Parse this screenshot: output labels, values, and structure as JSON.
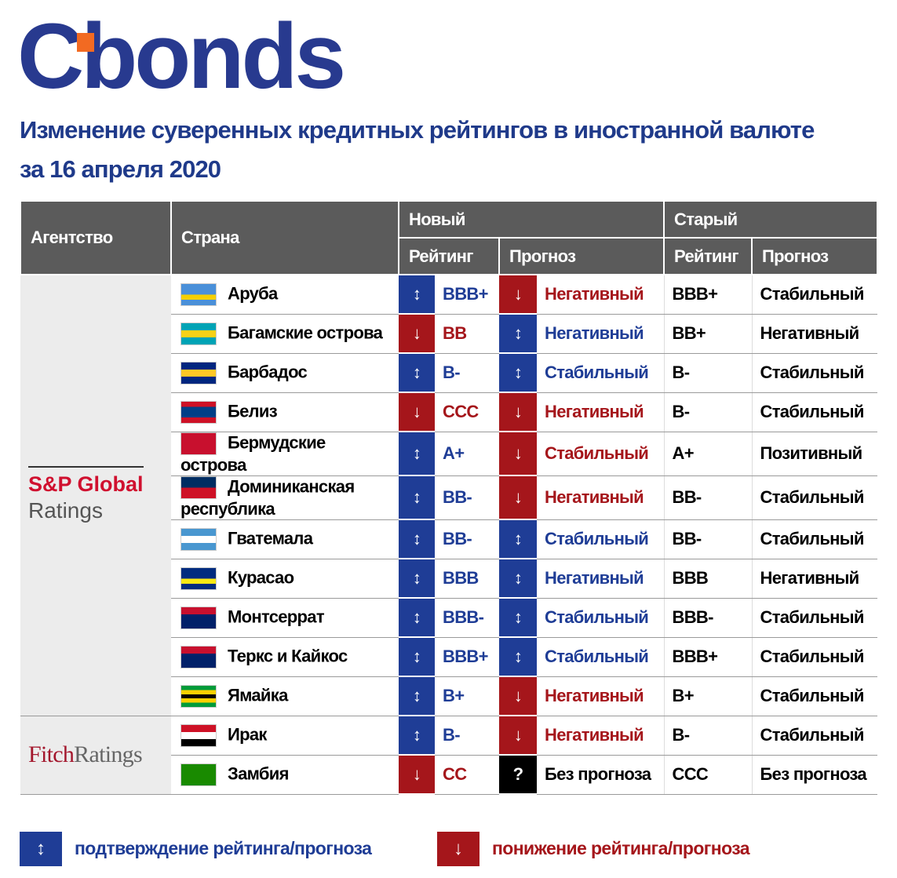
{
  "logo": "Cbonds",
  "title_lines": [
    "Изменение суверенных кредитных рейтингов в иностранной валюте",
    "за 16 апреля 2020"
  ],
  "table": {
    "header": {
      "agency": "Агентство",
      "country": "Страна",
      "new": "Новый",
      "old": "Старый",
      "rating": "Рейтинг",
      "outlook": "Прогноз"
    },
    "groups": [
      {
        "agency": [
          "S&P Global",
          "Ratings"
        ],
        "agency_colors": [
          "#d0102f",
          "#555555"
        ],
        "rows": [
          {
            "country": "Аруба",
            "flag": [
              "#4a90d9",
              "#4a90d9",
              "#f5d000",
              "#4a90d9"
            ],
            "new_rating_arrow": "↕",
            "new_rating": "BBB+",
            "new_rating_color": "#1f3d96",
            "new_outlook_arrow": "↓",
            "new_outlook": "Негативный",
            "new_outlook_color": "#a5161b",
            "old_rating": "BBB+",
            "old_outlook": "Стабильный"
          },
          {
            "country": "Багамские острова",
            "flag": [
              "#00a3b5",
              "#f7d117",
              "#00a3b5"
            ],
            "new_rating_arrow": "↓",
            "new_rating": "BB",
            "new_rating_color": "#a5161b",
            "new_outlook_arrow": "↕",
            "new_outlook": "Негативный",
            "new_outlook_color": "#1f3d96",
            "old_rating": "BB+",
            "old_outlook": "Негативный"
          },
          {
            "country": "Барбадос",
            "flag": [
              "#00267f",
              "#ffc726",
              "#00267f"
            ],
            "new_rating_arrow": "↕",
            "new_rating": "B-",
            "new_rating_color": "#1f3d96",
            "new_outlook_arrow": "↕",
            "new_outlook": "Стабильный",
            "new_outlook_color": "#1f3d96",
            "old_rating": "B-",
            "old_outlook": "Стабильный"
          },
          {
            "country": "Белиз",
            "flag": [
              "#ce1126",
              "#003f87",
              "#003f87",
              "#ce1126"
            ],
            "new_rating_arrow": "↓",
            "new_rating": "CCC",
            "new_rating_color": "#a5161b",
            "new_outlook_arrow": "↓",
            "new_outlook": "Негативный",
            "new_outlook_color": "#a5161b",
            "old_rating": "B-",
            "old_outlook": "Стабильный"
          },
          {
            "country": "Бермудские острова",
            "flag": [
              "#c8102e"
            ],
            "new_rating_arrow": "↕",
            "new_rating": "A+",
            "new_rating_color": "#1f3d96",
            "new_outlook_arrow": "↓",
            "new_outlook": "Стабильный",
            "new_outlook_color": "#a5161b",
            "old_rating": "A+",
            "old_outlook": "Позитивный"
          },
          {
            "country": "Доминиканская республика",
            "flag": [
              "#002d62",
              "#ce1126"
            ],
            "new_rating_arrow": "↕",
            "new_rating": "BB-",
            "new_rating_color": "#1f3d96",
            "new_outlook_arrow": "↓",
            "new_outlook": "Негативный",
            "new_outlook_color": "#a5161b",
            "old_rating": "BB-",
            "old_outlook": "Стабильный"
          },
          {
            "country": "Гватемала",
            "flag": [
              "#4997d0",
              "#ffffff",
              "#4997d0"
            ],
            "new_rating_arrow": "↕",
            "new_rating": "BB-",
            "new_rating_color": "#1f3d96",
            "new_outlook_arrow": "↕",
            "new_outlook": "Стабильный",
            "new_outlook_color": "#1f3d96",
            "old_rating": "BB-",
            "old_outlook": "Стабильный"
          },
          {
            "country": "Курасао",
            "flag": [
              "#002b7f",
              "#002b7f",
              "#f9e814",
              "#002b7f"
            ],
            "new_rating_arrow": "↕",
            "new_rating": "BBB",
            "new_rating_color": "#1f3d96",
            "new_outlook_arrow": "↕",
            "new_outlook": "Негативный",
            "new_outlook_color": "#1f3d96",
            "old_rating": "BBB",
            "old_outlook": "Негативный"
          },
          {
            "country": "Монтсеррат",
            "flag": [
              "#c8102e",
              "#012169",
              "#012169"
            ],
            "new_rating_arrow": "↕",
            "new_rating": "BBB-",
            "new_rating_color": "#1f3d96",
            "new_outlook_arrow": "↕",
            "new_outlook": "Стабильный",
            "new_outlook_color": "#1f3d96",
            "old_rating": "BBB-",
            "old_outlook": "Стабильный"
          },
          {
            "country": "Теркс и Кайкос",
            "flag": [
              "#c8102e",
              "#012169",
              "#012169"
            ],
            "new_rating_arrow": "↕",
            "new_rating": "BBB+",
            "new_rating_color": "#1f3d96",
            "new_outlook_arrow": "↕",
            "new_outlook": "Стабильный",
            "new_outlook_color": "#1f3d96",
            "old_rating": "BBB+",
            "old_outlook": "Стабильный"
          },
          {
            "country": "Ямайка",
            "flag": [
              "#009b3a",
              "#fed100",
              "#000000",
              "#fed100",
              "#009b3a"
            ],
            "new_rating_arrow": "↕",
            "new_rating": "B+",
            "new_rating_color": "#1f3d96",
            "new_outlook_arrow": "↓",
            "new_outlook": "Негативный",
            "new_outlook_color": "#a5161b",
            "old_rating": "B+",
            "old_outlook": "Стабильный"
          }
        ]
      },
      {
        "agency": [
          "Fitch",
          "Ratings"
        ],
        "agency_colors": [
          "#a3162c",
          "#666666"
        ],
        "rows": [
          {
            "country": "Ирак",
            "flag": [
              "#ce1126",
              "#ffffff",
              "#000000"
            ],
            "new_rating_arrow": "↕",
            "new_rating": "B-",
            "new_rating_color": "#1f3d96",
            "new_outlook_arrow": "↓",
            "new_outlook": "Негативный",
            "new_outlook_color": "#a5161b",
            "old_rating": "B-",
            "old_outlook": "Стабильный"
          },
          {
            "country": "Замбия",
            "flag": [
              "#198a00"
            ],
            "new_rating_arrow": "↓",
            "new_rating": "CC",
            "new_rating_color": "#a5161b",
            "new_outlook_arrow": "?",
            "new_outlook": "Без прогноза",
            "new_outlook_color": "#000000",
            "old_rating": "CCC",
            "old_outlook": "Без прогноза"
          }
        ]
      }
    ]
  },
  "legend": [
    {
      "arrow": "↕",
      "text": "подтверждение рейтинга/прогноза",
      "color": "#1f3d96"
    },
    {
      "arrow": "↓",
      "text": "понижение рейтинга/прогноза",
      "color": "#a5161b"
    }
  ]
}
